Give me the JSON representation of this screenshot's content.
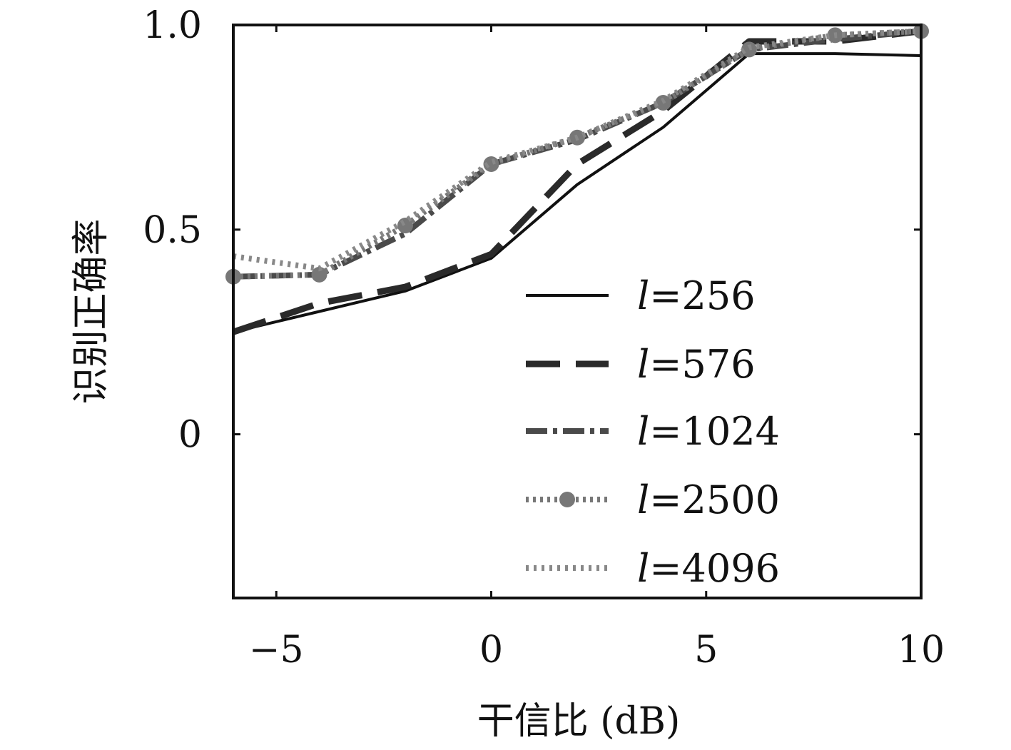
{
  "chart_data": {
    "type": "line",
    "xlabel": "干信比 (dB)",
    "ylabel": "识别正确率",
    "xlim": [
      -6,
      10
    ],
    "ylim": [
      -0.4,
      1.0
    ],
    "xticks": [
      -5,
      0,
      5,
      10
    ],
    "xtick_labels": [
      "−5",
      "0",
      "5",
      "10"
    ],
    "yticks": [
      0,
      0.5,
      1.0
    ],
    "ytick_labels": [
      "0",
      "0.5",
      "1.0"
    ],
    "grid": false,
    "legend_position": "bottom-right",
    "series": [
      {
        "name": "l=256",
        "label_var": "l",
        "label_value": "=256",
        "style": "solid",
        "color": "#111111",
        "x": [
          -6,
          -4,
          -2,
          0,
          2,
          4,
          6,
          8,
          10
        ],
        "y": [
          0.25,
          0.3,
          0.35,
          0.43,
          0.61,
          0.75,
          0.93,
          0.93,
          0.925
        ]
      },
      {
        "name": "l=576",
        "label_var": "l",
        "label_value": "=576",
        "style": "dashed",
        "color": "#2a2a2a",
        "x": [
          -6,
          -4,
          -2,
          0,
          2,
          4,
          6,
          8,
          10
        ],
        "y": [
          0.25,
          0.32,
          0.36,
          0.44,
          0.66,
          0.79,
          0.96,
          0.96,
          0.985
        ]
      },
      {
        "name": "l=1024",
        "label_var": "l",
        "label_value": "=1024",
        "style": "dashdot",
        "color": "#4a4a4a",
        "x": [
          -6,
          -4,
          -2,
          0,
          2,
          4,
          6,
          8,
          10
        ],
        "y": [
          0.385,
          0.39,
          0.49,
          0.66,
          0.72,
          0.81,
          0.94,
          0.965,
          0.985
        ]
      },
      {
        "name": "l=2500",
        "label_var": "l",
        "label_value": "=2500",
        "style": "dotted-marker",
        "color": "#777777",
        "x": [
          -6,
          -4,
          -2,
          0,
          2,
          4,
          6,
          8,
          10
        ],
        "y": [
          0.385,
          0.39,
          0.51,
          0.66,
          0.725,
          0.81,
          0.94,
          0.975,
          0.985
        ]
      },
      {
        "name": "l=4096",
        "label_var": "l",
        "label_value": "=4096",
        "style": "dotted",
        "color": "#888888",
        "x": [
          -6,
          -4,
          -2,
          0,
          2,
          4,
          6,
          8,
          10
        ],
        "y": [
          0.435,
          0.405,
          0.52,
          0.665,
          0.725,
          0.815,
          0.945,
          0.975,
          0.985
        ]
      }
    ]
  }
}
